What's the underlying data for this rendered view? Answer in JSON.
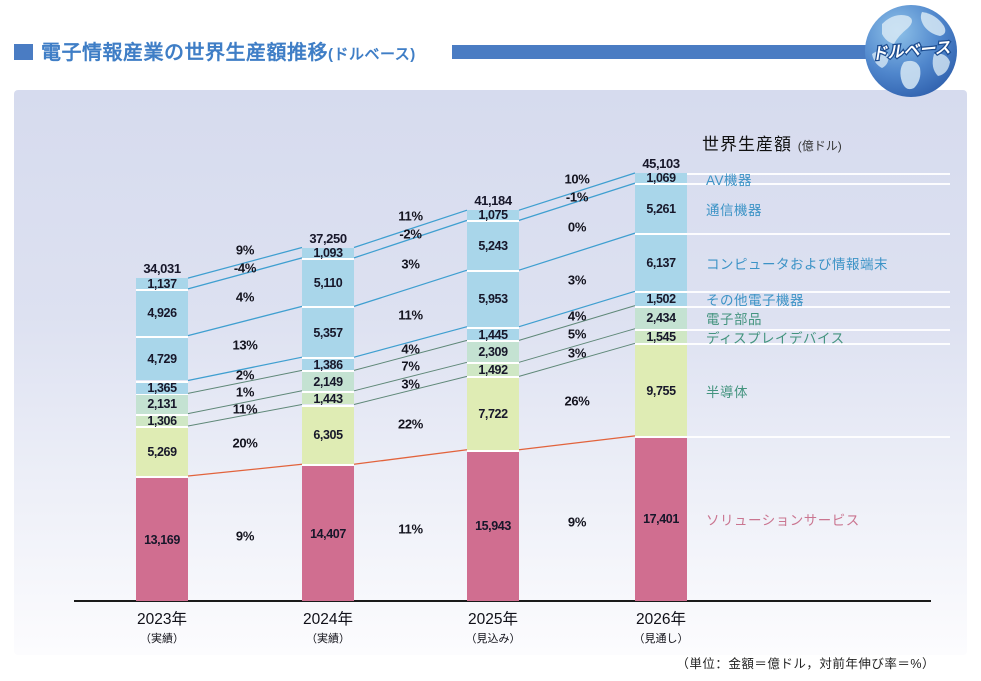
{
  "header": {
    "title": "電子情報産業の世界生産額推移",
    "title_suffix": "(ドルベース)",
    "globe_badge": "ドルベース"
  },
  "legend": {
    "title": "世界生産額",
    "unit": "(億ドル)"
  },
  "footnote": "（単位：金額＝億ドル，対前年伸び率＝%）",
  "chart_data": {
    "type": "bar",
    "stacked": true,
    "unit": "億ドル",
    "categories": [
      "2023年",
      "2024年",
      "2025年",
      "2026年"
    ],
    "category_notes": [
      "（実績）",
      "（実績）",
      "（見込み）",
      "（見通し）"
    ],
    "totals": [
      34031,
      37250,
      41184,
      45103
    ],
    "total_growth": [
      "9%",
      "11%",
      "10%"
    ],
    "series_bottom_to_top": [
      {
        "name": "ソリューションサービス",
        "values": [
          13169,
          14407,
          15943,
          17401
        ],
        "growth": [
          "9%",
          "11%",
          "9%"
        ],
        "color": "#d06e90",
        "line_color": "#e2633c",
        "legend_color": "#ca7590"
      },
      {
        "name": "半導体",
        "values": [
          5269,
          6305,
          7722,
          9755
        ],
        "growth": [
          "20%",
          "22%",
          "26%"
        ],
        "color": "#dfecb4",
        "line_color": "#5f8878",
        "legend_color": "#44947f"
      },
      {
        "name": "ディスプレイデバイス",
        "values": [
          1306,
          1443,
          1492,
          1545
        ],
        "growth": [
          "11%",
          "3%",
          "3%"
        ],
        "color": "#cfe7c4",
        "line_color": "#5f8878",
        "legend_color": "#44947f"
      },
      {
        "name": "電子部品",
        "values": [
          2131,
          2149,
          2309,
          2434
        ],
        "growth": [
          "1%",
          "7%",
          "5%"
        ],
        "color": "#c4e2d2",
        "line_color": "#5f8878",
        "legend_color": "#44947f"
      },
      {
        "name": "その他電子機器",
        "values": [
          1365,
          1386,
          1445,
          1502
        ],
        "growth": [
          "2%",
          "4%",
          "4%"
        ],
        "color": "#a9d6ea",
        "line_color": "#3f9fd0",
        "legend_color": "#3c93c6"
      },
      {
        "name": "コンピュータおよび情報端末",
        "values": [
          4729,
          5357,
          5953,
          6137
        ],
        "growth": [
          "13%",
          "11%",
          "3%"
        ],
        "color": "#a9d6ea",
        "line_color": "#3f9fd0",
        "legend_color": "#3c93c6"
      },
      {
        "name": "通信機器",
        "values": [
          4926,
          5110,
          5243,
          5261
        ],
        "growth": [
          "4%",
          "3%",
          "0%"
        ],
        "color": "#a9d6ea",
        "line_color": "#3f9fd0",
        "legend_color": "#3c93c6"
      },
      {
        "name": "AV機器",
        "values": [
          1137,
          1093,
          1075,
          1069
        ],
        "growth": [
          "-4%",
          "-2%",
          "-1%"
        ],
        "color": "#a9d6ea",
        "line_color": "#3f9fd0",
        "legend_color": "#3c93c6"
      }
    ]
  }
}
